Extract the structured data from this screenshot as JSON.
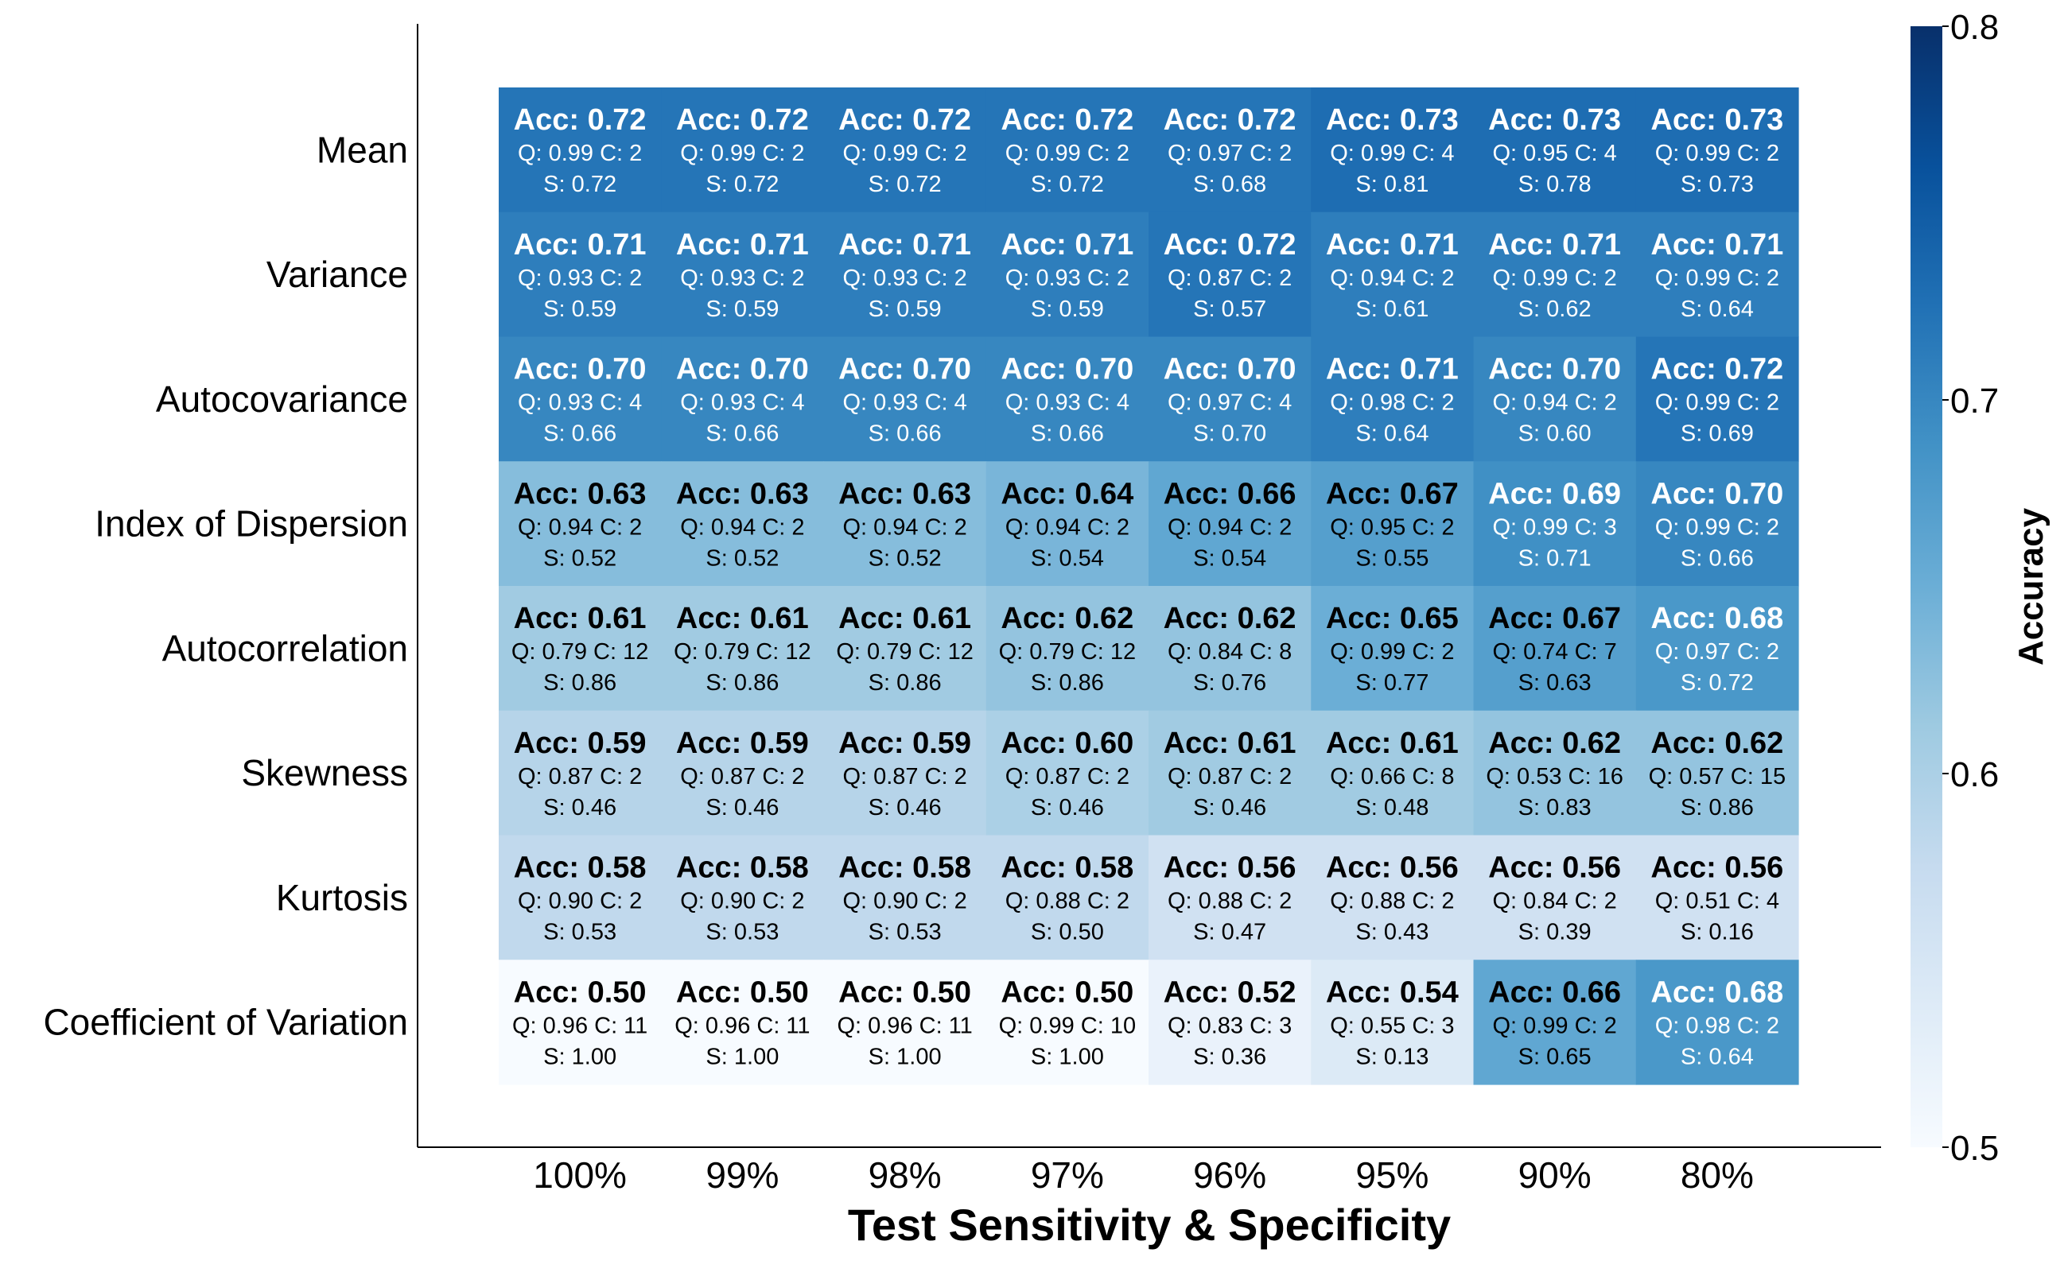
{
  "chart_data": {
    "type": "heatmap",
    "xlabel": "Test Sensitivity & Specificity",
    "ylabel": "",
    "x_categories": [
      "100%",
      "99%",
      "98%",
      "97%",
      "96%",
      "95%",
      "90%",
      "80%"
    ],
    "y_categories": [
      "Mean",
      "Variance",
      "Autocovariance",
      "Index of Dispersion",
      "Autocorrelation",
      "Skewness",
      "Kurtosis",
      "Coefficient of Variation"
    ],
    "colorbar": {
      "label": "Accuracy",
      "range": [
        0.5,
        0.8
      ],
      "ticks": [
        "0.5",
        "0.6",
        "0.7",
        "0.8"
      ],
      "colormap": "Blues"
    },
    "colors": {
      "low": "#f7fbff",
      "high": "#08306b"
    },
    "cells": [
      [
        {
          "acc": "0.72",
          "q": "0.99",
          "c": "2",
          "s": "0.72"
        },
        {
          "acc": "0.72",
          "q": "0.99",
          "c": "2",
          "s": "0.72"
        },
        {
          "acc": "0.72",
          "q": "0.99",
          "c": "2",
          "s": "0.72"
        },
        {
          "acc": "0.72",
          "q": "0.99",
          "c": "2",
          "s": "0.72"
        },
        {
          "acc": "0.72",
          "q": "0.97",
          "c": "2",
          "s": "0.68"
        },
        {
          "acc": "0.73",
          "q": "0.99",
          "c": "4",
          "s": "0.81"
        },
        {
          "acc": "0.73",
          "q": "0.95",
          "c": "4",
          "s": "0.78"
        },
        {
          "acc": "0.73",
          "q": "0.99",
          "c": "2",
          "s": "0.73"
        }
      ],
      [
        {
          "acc": "0.71",
          "q": "0.93",
          "c": "2",
          "s": "0.59"
        },
        {
          "acc": "0.71",
          "q": "0.93",
          "c": "2",
          "s": "0.59"
        },
        {
          "acc": "0.71",
          "q": "0.93",
          "c": "2",
          "s": "0.59"
        },
        {
          "acc": "0.71",
          "q": "0.93",
          "c": "2",
          "s": "0.59"
        },
        {
          "acc": "0.72",
          "q": "0.87",
          "c": "2",
          "s": "0.57"
        },
        {
          "acc": "0.71",
          "q": "0.94",
          "c": "2",
          "s": "0.61"
        },
        {
          "acc": "0.71",
          "q": "0.99",
          "c": "2",
          "s": "0.62"
        },
        {
          "acc": "0.71",
          "q": "0.99",
          "c": "2",
          "s": "0.64"
        }
      ],
      [
        {
          "acc": "0.70",
          "q": "0.93",
          "c": "4",
          "s": "0.66"
        },
        {
          "acc": "0.70",
          "q": "0.93",
          "c": "4",
          "s": "0.66"
        },
        {
          "acc": "0.70",
          "q": "0.93",
          "c": "4",
          "s": "0.66"
        },
        {
          "acc": "0.70",
          "q": "0.93",
          "c": "4",
          "s": "0.66"
        },
        {
          "acc": "0.70",
          "q": "0.97",
          "c": "4",
          "s": "0.70"
        },
        {
          "acc": "0.71",
          "q": "0.98",
          "c": "2",
          "s": "0.64"
        },
        {
          "acc": "0.70",
          "q": "0.94",
          "c": "2",
          "s": "0.60"
        },
        {
          "acc": "0.72",
          "q": "0.99",
          "c": "2",
          "s": "0.69"
        }
      ],
      [
        {
          "acc": "0.63",
          "q": "0.94",
          "c": "2",
          "s": "0.52"
        },
        {
          "acc": "0.63",
          "q": "0.94",
          "c": "2",
          "s": "0.52"
        },
        {
          "acc": "0.63",
          "q": "0.94",
          "c": "2",
          "s": "0.52"
        },
        {
          "acc": "0.64",
          "q": "0.94",
          "c": "2",
          "s": "0.54"
        },
        {
          "acc": "0.66",
          "q": "0.94",
          "c": "2",
          "s": "0.54"
        },
        {
          "acc": "0.67",
          "q": "0.95",
          "c": "2",
          "s": "0.55"
        },
        {
          "acc": "0.69",
          "q": "0.99",
          "c": "3",
          "s": "0.71"
        },
        {
          "acc": "0.70",
          "q": "0.99",
          "c": "2",
          "s": "0.66"
        }
      ],
      [
        {
          "acc": "0.61",
          "q": "0.79",
          "c": "12",
          "s": "0.86"
        },
        {
          "acc": "0.61",
          "q": "0.79",
          "c": "12",
          "s": "0.86"
        },
        {
          "acc": "0.61",
          "q": "0.79",
          "c": "12",
          "s": "0.86"
        },
        {
          "acc": "0.62",
          "q": "0.79",
          "c": "12",
          "s": "0.86"
        },
        {
          "acc": "0.62",
          "q": "0.84",
          "c": "8",
          "s": "0.76"
        },
        {
          "acc": "0.65",
          "q": "0.99",
          "c": "2",
          "s": "0.77"
        },
        {
          "acc": "0.67",
          "q": "0.74",
          "c": "7",
          "s": "0.63"
        },
        {
          "acc": "0.68",
          "q": "0.97",
          "c": "2",
          "s": "0.72"
        }
      ],
      [
        {
          "acc": "0.59",
          "q": "0.87",
          "c": "2",
          "s": "0.46"
        },
        {
          "acc": "0.59",
          "q": "0.87",
          "c": "2",
          "s": "0.46"
        },
        {
          "acc": "0.59",
          "q": "0.87",
          "c": "2",
          "s": "0.46"
        },
        {
          "acc": "0.60",
          "q": "0.87",
          "c": "2",
          "s": "0.46"
        },
        {
          "acc": "0.61",
          "q": "0.87",
          "c": "2",
          "s": "0.46"
        },
        {
          "acc": "0.61",
          "q": "0.66",
          "c": "8",
          "s": "0.48"
        },
        {
          "acc": "0.62",
          "q": "0.53",
          "c": "16",
          "s": "0.83"
        },
        {
          "acc": "0.62",
          "q": "0.57",
          "c": "15",
          "s": "0.86"
        }
      ],
      [
        {
          "acc": "0.58",
          "q": "0.90",
          "c": "2",
          "s": "0.53"
        },
        {
          "acc": "0.58",
          "q": "0.90",
          "c": "2",
          "s": "0.53"
        },
        {
          "acc": "0.58",
          "q": "0.90",
          "c": "2",
          "s": "0.53"
        },
        {
          "acc": "0.58",
          "q": "0.88",
          "c": "2",
          "s": "0.50"
        },
        {
          "acc": "0.56",
          "q": "0.88",
          "c": "2",
          "s": "0.47"
        },
        {
          "acc": "0.56",
          "q": "0.88",
          "c": "2",
          "s": "0.43"
        },
        {
          "acc": "0.56",
          "q": "0.84",
          "c": "2",
          "s": "0.39"
        },
        {
          "acc": "0.56",
          "q": "0.51",
          "c": "4",
          "s": "0.16"
        }
      ],
      [
        {
          "acc": "0.50",
          "q": "0.96",
          "c": "11",
          "s": "1.00"
        },
        {
          "acc": "0.50",
          "q": "0.96",
          "c": "11",
          "s": "1.00"
        },
        {
          "acc": "0.50",
          "q": "0.96",
          "c": "11",
          "s": "1.00"
        },
        {
          "acc": "0.50",
          "q": "0.99",
          "c": "10",
          "s": "1.00"
        },
        {
          "acc": "0.52",
          "q": "0.83",
          "c": "3",
          "s": "0.36"
        },
        {
          "acc": "0.54",
          "q": "0.55",
          "c": "3",
          "s": "0.13"
        },
        {
          "acc": "0.66",
          "q": "0.99",
          "c": "2",
          "s": "0.65"
        },
        {
          "acc": "0.68",
          "q": "0.98",
          "c": "2",
          "s": "0.64"
        }
      ]
    ]
  }
}
